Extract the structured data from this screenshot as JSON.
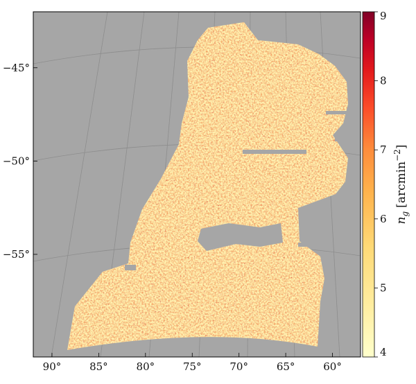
{
  "chart_data": {
    "type": "heatmap",
    "title": "",
    "xlabel": "",
    "ylabel": "",
    "projection": "orthographic sky map (RA / Dec graticule)",
    "x_axis": {
      "quantity": "Right Ascension",
      "ticks": [
        90,
        85,
        80,
        75,
        70,
        65,
        60
      ],
      "tick_labels": [
        "90°",
        "85°",
        "80°",
        "75°",
        "70°",
        "65°",
        "60°"
      ],
      "range": [
        92,
        57
      ]
    },
    "y_axis": {
      "quantity": "Declination",
      "ticks": [
        -45,
        -50,
        -55
      ],
      "tick_labels": [
        "−45°",
        "−50°",
        "−55°"
      ],
      "range": [
        -60.5,
        -42
      ]
    },
    "colorbar": {
      "label_symbol": "n",
      "label_subscript": "g",
      "label_units": "[arcmin",
      "label_exponent": "−2",
      "label_close": "]",
      "range": [
        4,
        9
      ],
      "ticks": [
        4,
        5,
        6,
        7,
        8,
        9
      ],
      "tick_labels": [
        "4",
        "5",
        "6",
        "7",
        "8",
        "9"
      ],
      "colormap": "YlOrRd-like (light yellow → orange → red → dark red)"
    },
    "background_color": "#a6a6a6",
    "grid": true,
    "masked_regions": [
      "rectangular hole near RA 72°, Dec −53°",
      "thin horizontal gaps near Dec −50° and Dec −48°",
      "small cutout near RA 63°, Dec −53°"
    ]
  }
}
